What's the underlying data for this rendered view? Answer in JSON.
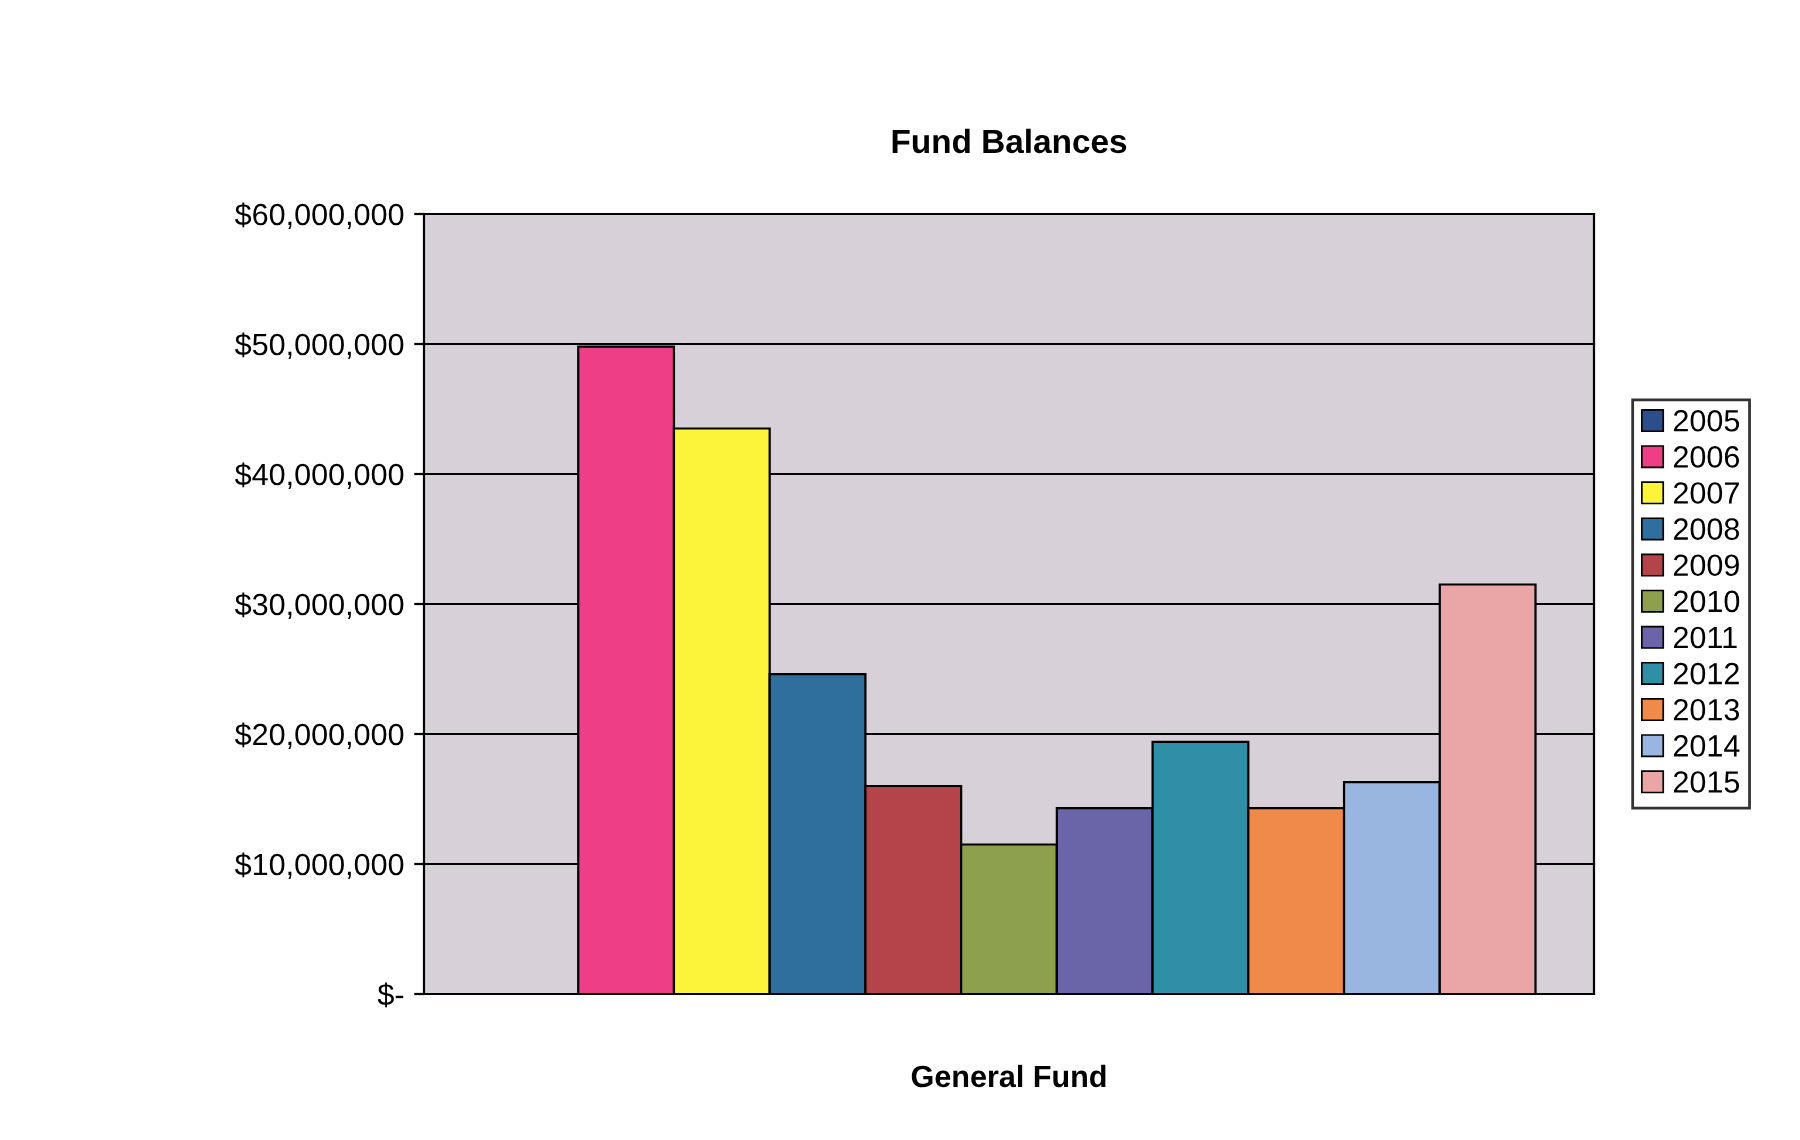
{
  "chart_data": {
    "type": "bar",
    "title": "Fund Balances",
    "xlabel": "General Fund",
    "categories": [
      null
    ],
    "series": [
      {
        "name": "2005",
        "color": "#2c4f8c",
        "values": [
          null
        ]
      },
      {
        "name": "2006",
        "color": "#ee3f86",
        "values": [
          49800000
        ]
      },
      {
        "name": "2007",
        "color": "#fbf43a",
        "values": [
          43500000
        ]
      },
      {
        "name": "2008",
        "color": "#2f6f9e",
        "values": [
          24600000
        ]
      },
      {
        "name": "2009",
        "color": "#b44449",
        "values": [
          16000000
        ]
      },
      {
        "name": "2010",
        "color": "#8ca04e",
        "values": [
          11500000
        ]
      },
      {
        "name": "2011",
        "color": "#6a64a8",
        "values": [
          14300000
        ]
      },
      {
        "name": "2012",
        "color": "#2f8fa6",
        "values": [
          19400000
        ]
      },
      {
        "name": "2013",
        "color": "#f08a4b",
        "values": [
          14300000
        ]
      },
      {
        "name": "2014",
        "color": "#98b6e0",
        "values": [
          16300000
        ]
      },
      {
        "name": "2015",
        "color": "#eaa6a6",
        "values": [
          31500000
        ]
      }
    ],
    "ylim": [
      0,
      60000000
    ],
    "yticks": [
      {
        "value": 0,
        "label": "$-"
      },
      {
        "value": 10000000,
        "label": "$10,000,000"
      },
      {
        "value": 20000000,
        "label": "$20,000,000"
      },
      {
        "value": 30000000,
        "label": "$30,000,000"
      },
      {
        "value": 40000000,
        "label": "$40,000,000"
      },
      {
        "value": 50000000,
        "label": "$50,000,000"
      },
      {
        "value": 60000000,
        "label": "$60,000,000"
      }
    ],
    "grid": "y",
    "legend": "right"
  }
}
